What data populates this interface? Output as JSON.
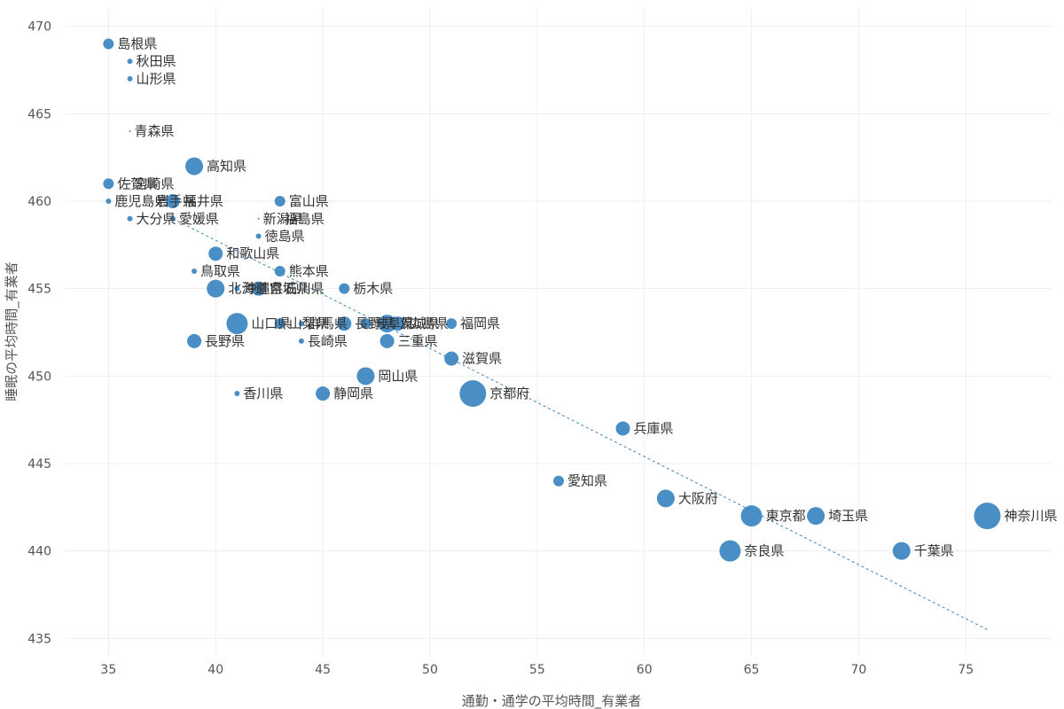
{
  "chart_data": {
    "type": "scatter",
    "xlabel": "通勤・通学の平均時間_有業者",
    "ylabel": "睡眠の平均時間_有業者",
    "xlim": [
      33,
      79
    ],
    "ylim": [
      434,
      471
    ],
    "xticks": [
      35,
      40,
      45,
      50,
      55,
      60,
      65,
      70,
      75
    ],
    "yticks": [
      435,
      440,
      445,
      450,
      455,
      460,
      465,
      470
    ],
    "grid": true,
    "point_color": "#3a86c0",
    "trend_color": "#3a86c0",
    "trendline": {
      "x": [
        38,
        76
      ],
      "y": [
        459,
        435.5
      ]
    },
    "points": [
      {
        "label": "島根県",
        "x": 35,
        "y": 469,
        "size": 2
      },
      {
        "label": "秋田県",
        "x": 36,
        "y": 468,
        "size": 1
      },
      {
        "label": "山形県",
        "x": 36,
        "y": 467,
        "size": 1
      },
      {
        "label": "青森県",
        "x": 36,
        "y": 464,
        "size": 0
      },
      {
        "label": "高知県",
        "x": 39,
        "y": 462,
        "size": 4
      },
      {
        "label": "佐賀県",
        "x": 35,
        "y": 461,
        "size": 2
      },
      {
        "label": "宮崎県",
        "x": 36,
        "y": 461,
        "size": 0
      },
      {
        "label": "鹿児島県",
        "x": 35,
        "y": 460,
        "size": 1
      },
      {
        "label": "岩手県",
        "x": 37,
        "y": 460,
        "size": 0
      },
      {
        "label": "福井県",
        "x": 38,
        "y": 460,
        "size": 3
      },
      {
        "label": "富山県",
        "x": 43,
        "y": 460,
        "size": 2
      },
      {
        "label": "大分県",
        "x": 36,
        "y": 459,
        "size": 1
      },
      {
        "label": "愛媛県",
        "x": 38,
        "y": 459,
        "size": 1
      },
      {
        "label": "新潟県",
        "x": 42,
        "y": 459,
        "size": 0
      },
      {
        "label": "福島県",
        "x": 43,
        "y": 459,
        "size": 0
      },
      {
        "label": "徳島県",
        "x": 42,
        "y": 458,
        "size": 1
      },
      {
        "label": "和歌山県",
        "x": 40,
        "y": 457,
        "size": 3
      },
      {
        "label": "鳥取県",
        "x": 39,
        "y": 456,
        "size": 1
      },
      {
        "label": "熊本県",
        "x": 43,
        "y": 456,
        "size": 2
      },
      {
        "label": "北海道",
        "x": 40,
        "y": 455,
        "size": 4
      },
      {
        "label": "沖縄県",
        "x": 41,
        "y": 455,
        "size": 1
      },
      {
        "label": "宮城県",
        "x": 42,
        "y": 455,
        "size": 3
      },
      {
        "label": "石川県",
        "x": 43,
        "y": 455,
        "size": 0
      },
      {
        "label": "栃木県",
        "x": 46,
        "y": 455,
        "size": 2
      },
      {
        "label": "山口県",
        "x": 41,
        "y": 453,
        "size": 5
      },
      {
        "label": "山梨県",
        "x": 43,
        "y": 453,
        "size": 2
      },
      {
        "label": "群馬県",
        "x": 44,
        "y": 453,
        "size": 1
      },
      {
        "label": "長野県",
        "x": 46,
        "y": 453,
        "size": 3
      },
      {
        "label": "岐阜県",
        "x": 47,
        "y": 453,
        "size": 2
      },
      {
        "label": "茨城県",
        "x": 48,
        "y": 453,
        "size": 4
      },
      {
        "label": "広島県",
        "x": 48.5,
        "y": 453,
        "size": 3
      },
      {
        "label": "福岡県",
        "x": 51,
        "y": 453,
        "size": 2
      },
      {
        "label": "長野県",
        "x": 39,
        "y": 452,
        "size": 3
      },
      {
        "label": "長崎県",
        "x": 44,
        "y": 452,
        "size": 1
      },
      {
        "label": "三重県",
        "x": 48,
        "y": 452,
        "size": 3
      },
      {
        "label": "滋賀県",
        "x": 51,
        "y": 451,
        "size": 3
      },
      {
        "label": "岡山県",
        "x": 47,
        "y": 450,
        "size": 4
      },
      {
        "label": "香川県",
        "x": 41,
        "y": 449,
        "size": 1
      },
      {
        "label": "静岡県",
        "x": 45,
        "y": 449,
        "size": 3
      },
      {
        "label": "京都府",
        "x": 52,
        "y": 449,
        "size": 6
      },
      {
        "label": "兵庫県",
        "x": 59,
        "y": 447,
        "size": 3
      },
      {
        "label": "愛知県",
        "x": 56,
        "y": 444,
        "size": 2
      },
      {
        "label": "大阪府",
        "x": 61,
        "y": 443,
        "size": 4
      },
      {
        "label": "東京都",
        "x": 65,
        "y": 442,
        "size": 5
      },
      {
        "label": "埼玉県",
        "x": 68,
        "y": 442,
        "size": 4
      },
      {
        "label": "神奈川県",
        "x": 76,
        "y": 442,
        "size": 6
      },
      {
        "label": "奈良県",
        "x": 64,
        "y": 440,
        "size": 5
      },
      {
        "label": "千葉県",
        "x": 72,
        "y": 440,
        "size": 4
      }
    ]
  }
}
